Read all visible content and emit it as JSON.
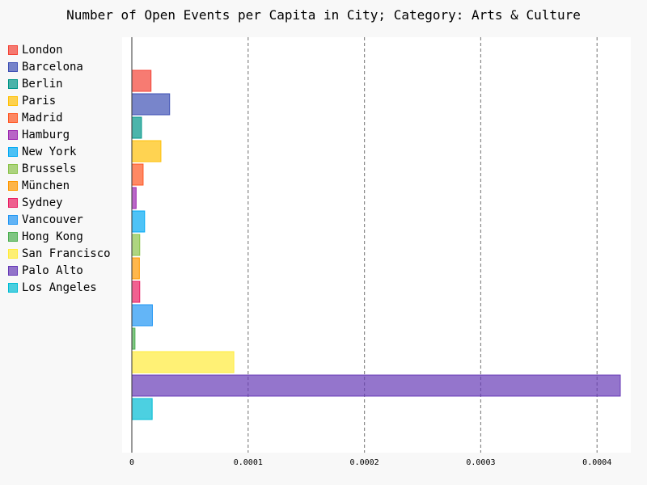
{
  "chart_data": {
    "type": "bar",
    "orientation": "horizontal",
    "title": "Number of Open Events per Capita in City; Category: Arts & Culture",
    "xlabel": "",
    "ylabel": "",
    "xlim": [
      0,
      0.00042
    ],
    "x_ticks": [
      0,
      0.0001,
      0.0002,
      0.0003,
      0.0004
    ],
    "x_tick_labels": [
      "0",
      "0.0001",
      "0.0002",
      "0.0003",
      "0.0004"
    ],
    "grid": "vertical-dashed",
    "legend_position": "left",
    "categories": [
      "London",
      "Barcelona",
      "Berlin",
      "Paris",
      "Madrid",
      "Hamburg",
      "New York",
      "Brussels",
      "München",
      "Sydney",
      "Vancouver",
      "Hong Kong",
      "San Francisco",
      "Palo Alto",
      "Los Angeles"
    ],
    "values": [
      1.65e-05,
      3.25e-05,
      8.3e-06,
      2.5e-05,
      9.7e-06,
      3.7e-06,
      1.1e-05,
      6.8e-06,
      6.5e-06,
      6.8e-06,
      1.77e-05,
      2.7e-06,
      8.77e-05,
      0.00042,
      1.75e-05
    ],
    "colors": [
      "#F44336",
      "#3F51B5",
      "#009688",
      "#FFC107",
      "#FF5722",
      "#9C27B0",
      "#03A9F4",
      "#8BC34A",
      "#FF9800",
      "#E91E63",
      "#2196F3",
      "#4CAF50",
      "#FFEB3B",
      "#673AB7",
      "#00BCD4"
    ]
  }
}
